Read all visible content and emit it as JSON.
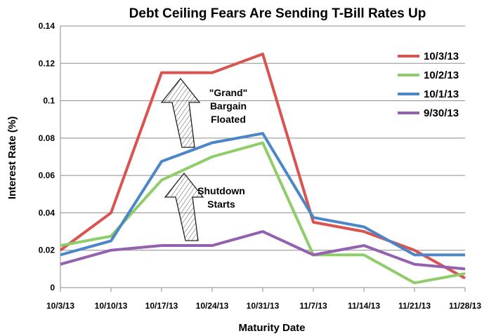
{
  "chart_data": {
    "type": "line",
    "title": "Debt Ceiling Fears Are Sending T-Bill Rates Up",
    "xlabel": "Maturity Date",
    "ylabel": "Interest Rate (%)",
    "categories": [
      "10/3/13",
      "10/10/13",
      "10/17/13",
      "10/24/13",
      "10/31/13",
      "11/7/13",
      "11/14/13",
      "11/21/13",
      "11/28/13"
    ],
    "ylim": [
      0,
      0.14
    ],
    "yticks": [
      "0",
      "0.02",
      "0.04",
      "0.06",
      "0.08",
      "0.1",
      "0.12",
      "0.14"
    ],
    "grid": "horizontal",
    "legend": "top-right",
    "series": [
      {
        "name": "10/3/13",
        "color": "#d9534f",
        "values": [
          0.02,
          0.04,
          0.115,
          0.115,
          0.125,
          0.035,
          0.03,
          0.02,
          0.005
        ]
      },
      {
        "name": "10/2/13",
        "color": "#8fcc6a",
        "values": [
          0.0225,
          0.0275,
          0.0575,
          0.07,
          0.0775,
          0.0175,
          0.0175,
          0.0025,
          0.0075
        ]
      },
      {
        "name": "10/1/13",
        "color": "#4a86c8",
        "values": [
          0.0175,
          0.025,
          0.0675,
          0.0775,
          0.0825,
          0.0375,
          0.0325,
          0.0175,
          0.0175
        ]
      },
      {
        "name": "9/30/13",
        "color": "#9461b0",
        "values": [
          0.0125,
          0.02,
          0.0225,
          0.0225,
          0.03,
          0.0175,
          0.0225,
          0.0125,
          0.01
        ]
      }
    ],
    "annotations": [
      {
        "lines": [
          "\"Grand\"",
          "Bargain",
          "Floated"
        ]
      },
      {
        "lines": [
          "Shutdown",
          "Starts"
        ]
      }
    ]
  }
}
